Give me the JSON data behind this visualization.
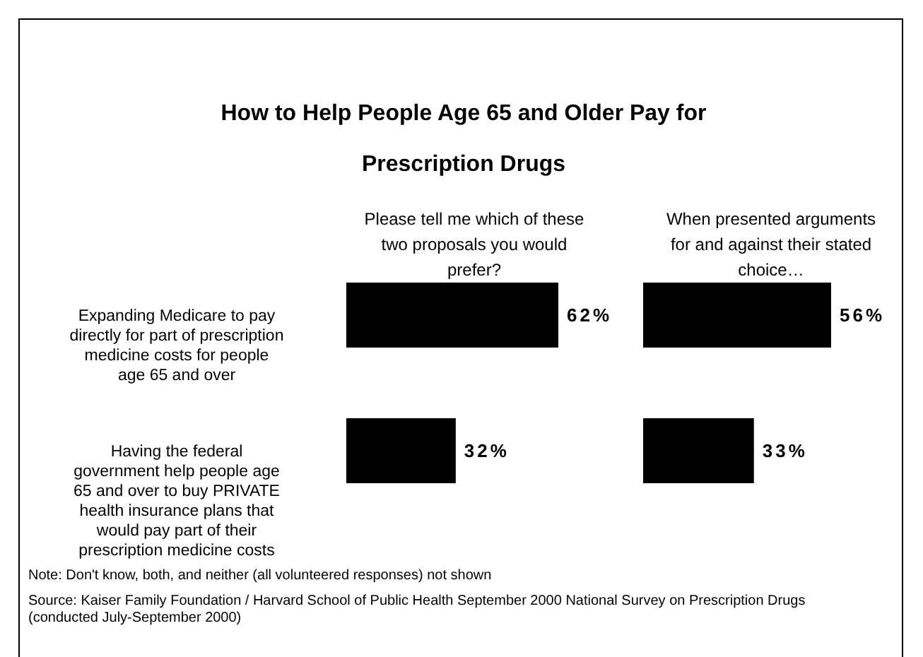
{
  "chart_data": [
    {
      "type": "bar",
      "orientation": "horizontal",
      "title": "How to Help People Age 65 and Older Pay for Prescription Drugs",
      "subtitle": "Please tell me which of these two proposals you would prefer?",
      "categories": [
        "Expanding Medicare to pay directly for part of prescription medicine costs for people age 65 and over",
        "Having the federal government help people age 65 and over to buy PRIVATE health insurance plans that would pay part of their prescription medicine costs"
      ],
      "values": [
        62,
        32
      ],
      "value_labels": [
        "62%",
        "32%"
      ],
      "color": "#000000",
      "annotations": [
        "Note: Don't know, both, and neither (all volunteered responses) not shown",
        "Source: Kaiser Family Foundation / Harvard School of Public Health September 2000 National Survey on Prescription Drugs  (conducted July-September 2000)"
      ]
    },
    {
      "type": "bar",
      "orientation": "horizontal",
      "subtitle": "When presented arguments for and against their stated choice…",
      "categories": [
        null,
        null
      ],
      "values": [
        56,
        33
      ],
      "value_labels": [
        "56%",
        "33%"
      ],
      "color": "#000000"
    }
  ]
}
